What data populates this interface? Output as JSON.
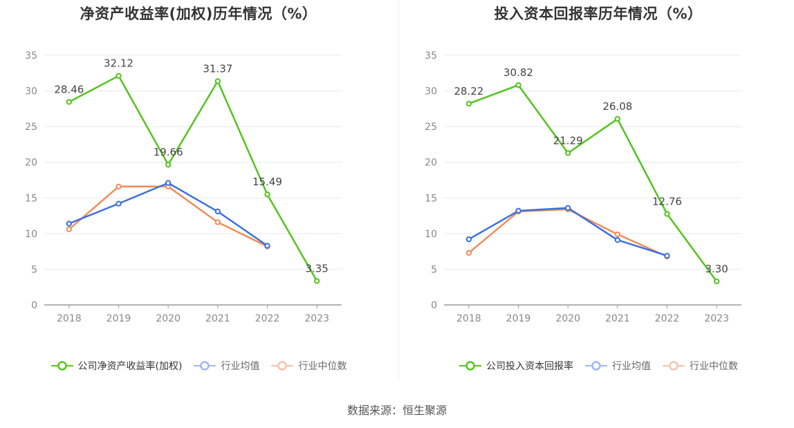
{
  "chart_data": [
    {
      "type": "line",
      "title": "净资产收益率(加权)历年情况（%）",
      "categories": [
        "2018",
        "2019",
        "2020",
        "2021",
        "2022",
        "2023"
      ],
      "ylim": [
        0,
        35
      ],
      "yticks": [
        0,
        5,
        10,
        15,
        20,
        25,
        30,
        35
      ],
      "grid": true,
      "legend_position": "bottom",
      "series": [
        {
          "name": "公司净资产收益率(加权)",
          "color": "#52c41a",
          "labels": true,
          "values": [
            28.46,
            32.12,
            19.66,
            31.37,
            15.49,
            3.35
          ],
          "value_labels": [
            "28.46",
            "32.12",
            "19.66",
            "31.37",
            "15.49",
            "3.35"
          ]
        },
        {
          "name": "行业均值",
          "color": "#3b6fe0",
          "labels": false,
          "values": [
            11.4,
            14.2,
            17.1,
            13.1,
            8.3,
            null
          ]
        },
        {
          "name": "行业中位数",
          "color": "#f08c5a",
          "labels": false,
          "values": [
            10.6,
            16.6,
            16.6,
            11.6,
            8.2,
            null
          ]
        }
      ]
    },
    {
      "type": "line",
      "title": "投入资本回报率历年情况（%）",
      "categories": [
        "2018",
        "2019",
        "2020",
        "2021",
        "2022",
        "2023"
      ],
      "ylim": [
        0,
        35
      ],
      "yticks": [
        0,
        5,
        10,
        15,
        20,
        25,
        30,
        35
      ],
      "grid": true,
      "legend_position": "bottom",
      "series": [
        {
          "name": "公司投入资本回报率",
          "color": "#52c41a",
          "labels": true,
          "values": [
            28.22,
            30.82,
            21.29,
            26.08,
            12.76,
            3.3
          ],
          "value_labels": [
            "28.22",
            "30.82",
            "21.29",
            "26.08",
            "12.76",
            "3.30"
          ]
        },
        {
          "name": "行业均值",
          "color": "#3b6fe0",
          "labels": false,
          "values": [
            9.2,
            13.2,
            13.6,
            9.1,
            6.9,
            null
          ]
        },
        {
          "name": "行业中位数",
          "color": "#f08c5a",
          "labels": false,
          "values": [
            7.3,
            13.1,
            13.4,
            9.9,
            6.8,
            null
          ]
        }
      ]
    }
  ],
  "legend_swatch_colors": [
    "#52c41a",
    "#9db7f0",
    "#f7c2a8"
  ],
  "source": "数据来源：恒生聚源"
}
